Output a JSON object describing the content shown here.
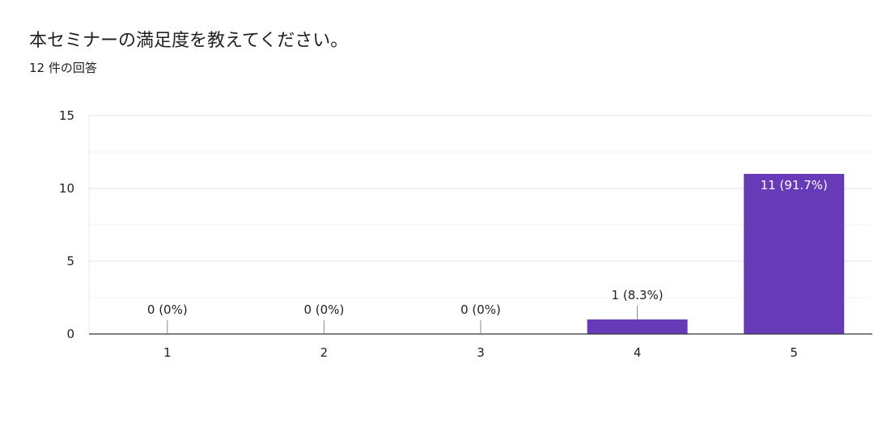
{
  "question": {
    "title": "本セミナーの満足度を教えてください。",
    "response_count": "12 件の回答"
  },
  "chart_data": {
    "type": "bar",
    "categories": [
      "1",
      "2",
      "3",
      "4",
      "5"
    ],
    "values": [
      0,
      0,
      0,
      1,
      11
    ],
    "data_labels": [
      "0 (0%)",
      "0 (0%)",
      "0 (0%)",
      "1 (8.3%)",
      "11 (91.7%)"
    ],
    "yticks": [
      "0",
      "5",
      "10",
      "15"
    ],
    "ylim": [
      0,
      15
    ],
    "grid": true,
    "bar_color": "#673ab7"
  }
}
